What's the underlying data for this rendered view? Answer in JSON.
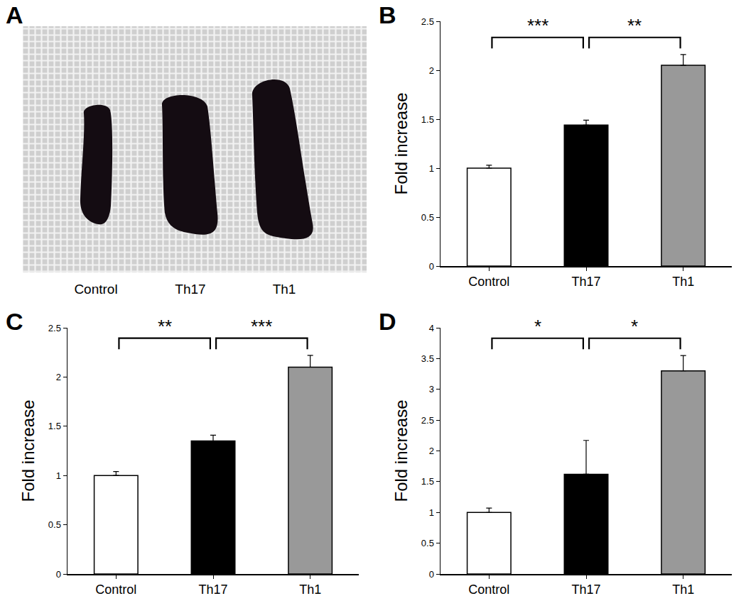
{
  "image": {
    "title": "A",
    "labels": [
      "Control",
      "Th17",
      "Th1"
    ]
  },
  "chart_data": [
    {
      "type": "bar",
      "title": "B",
      "categories": [
        "Control",
        "Th17",
        "Th1"
      ],
      "values": [
        1.0,
        1.44,
        2.05
      ],
      "errors": [
        0.03,
        0.05,
        0.11
      ],
      "colors": [
        "#ffffff",
        "#000000",
        "#999999"
      ],
      "ylabel": "Fold increase",
      "ylim": [
        0,
        2.5
      ],
      "yticks": [
        0,
        0.5,
        1,
        1.5,
        2,
        2.5
      ],
      "annotations": [
        {
          "text": "***",
          "between": [
            "Control",
            "Th17"
          ]
        },
        {
          "text": "**",
          "between": [
            "Th17",
            "Th1"
          ]
        }
      ]
    },
    {
      "type": "bar",
      "title": "C",
      "categories": [
        "Control",
        "Th17",
        "Th1"
      ],
      "values": [
        1.0,
        1.35,
        2.1
      ],
      "errors": [
        0.04,
        0.06,
        0.12
      ],
      "colors": [
        "#ffffff",
        "#000000",
        "#999999"
      ],
      "ylabel": "Fold increase",
      "ylim": [
        0,
        2.5
      ],
      "yticks": [
        0,
        0.5,
        1,
        1.5,
        2,
        2.5
      ],
      "annotations": [
        {
          "text": "**",
          "between": [
            "Control",
            "Th17"
          ]
        },
        {
          "text": "***",
          "between": [
            "Th17",
            "Th1"
          ]
        }
      ]
    },
    {
      "type": "bar",
      "title": "D",
      "categories": [
        "Control",
        "Th17",
        "Th1"
      ],
      "values": [
        1.0,
        1.62,
        3.3
      ],
      "errors": [
        0.07,
        0.55,
        0.25
      ],
      "colors": [
        "#ffffff",
        "#000000",
        "#999999"
      ],
      "ylabel": "Fold increase",
      "ylim": [
        0,
        4
      ],
      "yticks": [
        0,
        0.5,
        1,
        1.5,
        2,
        2.5,
        3,
        3.5,
        4
      ],
      "annotations": [
        {
          "text": "*",
          "between": [
            "Control",
            "Th17"
          ]
        },
        {
          "text": "*",
          "between": [
            "Th17",
            "Th1"
          ]
        }
      ]
    }
  ]
}
